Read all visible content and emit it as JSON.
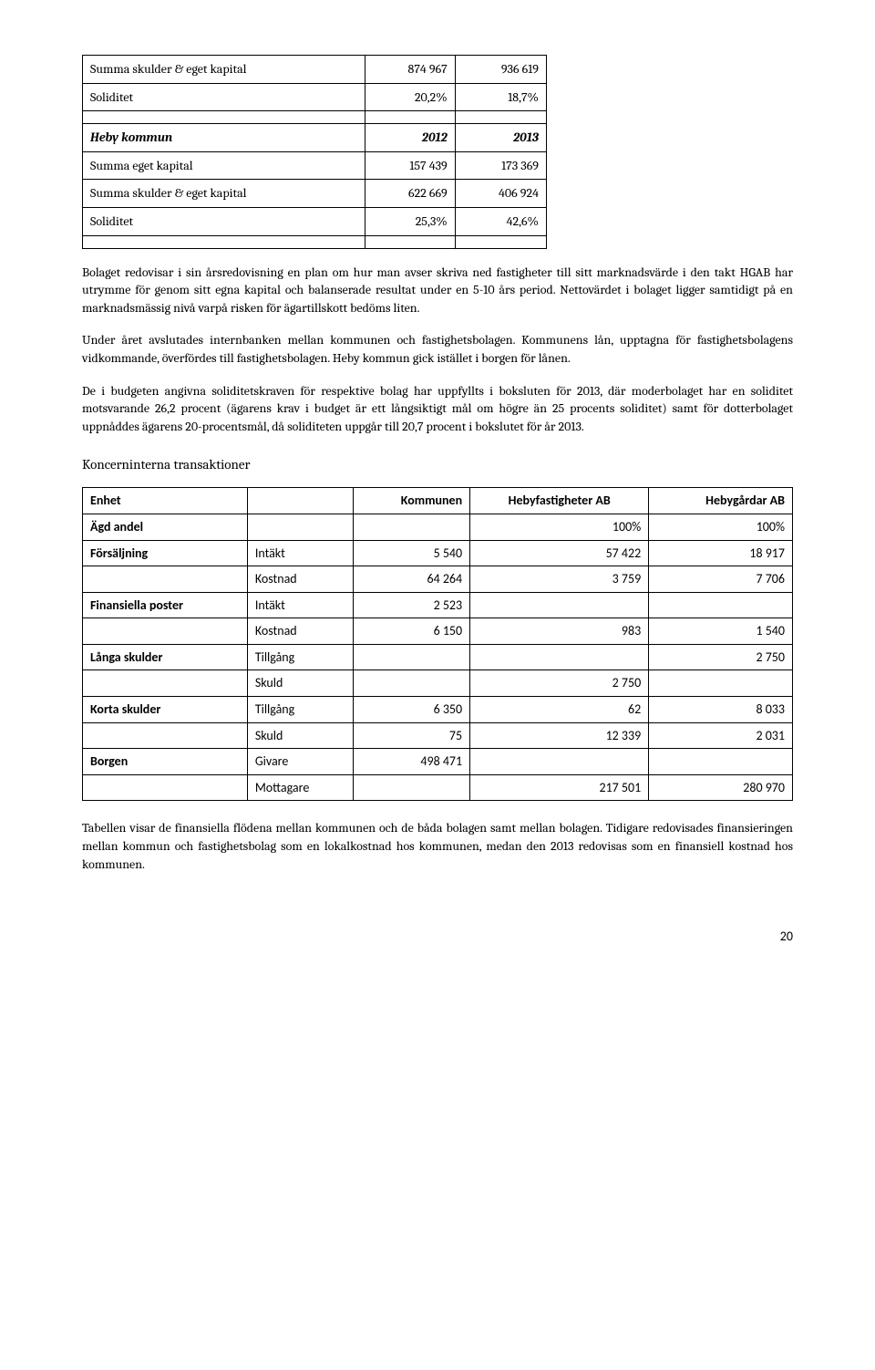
{
  "table1": {
    "rows": [
      {
        "label": "Summa skulder & eget kapital",
        "v1": "874 967",
        "v2": "936 619",
        "bold": false
      },
      {
        "label": "Soliditet",
        "v1": "20,2%",
        "v2": "18,7%",
        "bold": false
      }
    ],
    "header2": {
      "label": "Heby kommun",
      "v1": "2012",
      "v2": "2013"
    },
    "rows2": [
      {
        "label": "Summa eget kapital",
        "v1": "157 439",
        "v2": "173 369"
      },
      {
        "label": "Summa skulder & eget kapital",
        "v1": "622 669",
        "v2": "406 924"
      },
      {
        "label": "Soliditet",
        "v1": "25,3%",
        "v2": "42,6%"
      }
    ]
  },
  "para1": "Bolaget redovisar i sin årsredovisning en plan om hur man avser skriva ned fastigheter till sitt marknadsvärde i den takt HGAB har utrymme för genom sitt egna kapital och balanserade resultat under en 5-10 års period. Nettovärdet i bolaget ligger samtidigt på en marknadsmässig nivå varpå risken för ägartillskott bedöms liten.",
  "para2": "Under året avslutades internbanken mellan kommunen och fastighetsbolagen. Kommunens lån, upptagna för fastighetsbolagens vidkommande, överfördes till fastighetsbolagen. Heby kommun gick istället i borgen för lånen.",
  "para3": "De i budgeten angivna soliditetskraven för respektive bolag har uppfyllts i boksluten för 2013, där moderbolaget har en soliditet motsvarande 26,2 procent (ägarens krav i budget är ett långsiktigt mål om högre än 25 procents soliditet) samt för dotterbolaget uppnåddes ägarens 20-procentsmål, då soliditeten uppgår till 20,7 procent i bokslutet för år 2013.",
  "section_heading": "Koncerninterna transaktioner",
  "table2": {
    "headers": [
      "Enhet",
      "",
      "Kommunen",
      "Hebyfastigheter AB",
      "Hebygårdar AB"
    ],
    "rows": [
      {
        "c0": "Ägd andel",
        "c1": "",
        "c2": "",
        "c3": "100%",
        "c4": "100%",
        "rowhead": true
      },
      {
        "c0": "Försäljning",
        "c1": "Intäkt",
        "c2": "5 540",
        "c3": "57 422",
        "c4": "18 917",
        "rowhead": true
      },
      {
        "c0": "",
        "c1": "Kostnad",
        "c2": "64 264",
        "c3": "3 759",
        "c4": "7 706"
      },
      {
        "c0": "Finansiella poster",
        "c1": "Intäkt",
        "c2": "2 523",
        "c3": "",
        "c4": "",
        "rowhead": true
      },
      {
        "c0": "",
        "c1": "Kostnad",
        "c2": "6 150",
        "c3": "983",
        "c4": "1 540"
      },
      {
        "c0": "Långa skulder",
        "c1": "Tillgång",
        "c2": "",
        "c3": "",
        "c4": "2 750",
        "rowhead": true
      },
      {
        "c0": "",
        "c1": "Skuld",
        "c2": "",
        "c3": "2 750",
        "c4": ""
      },
      {
        "c0": "Korta skulder",
        "c1": "Tillgång",
        "c2": "6 350",
        "c3": "62",
        "c4": "8 033",
        "rowhead": true
      },
      {
        "c0": "",
        "c1": "Skuld",
        "c2": "75",
        "c3": "12 339",
        "c4": "2 031"
      },
      {
        "c0": "Borgen",
        "c1": "Givare",
        "c2": "498 471",
        "c3": "",
        "c4": "",
        "rowhead": true
      },
      {
        "c0": "",
        "c1": "Mottagare",
        "c2": "",
        "c3": "217 501",
        "c4": "280 970"
      }
    ]
  },
  "para4": "Tabellen visar de finansiella flödena mellan kommunen och de båda bolagen samt mellan bolagen. Tidigare redovisades finansieringen mellan kommun och fastighetsbolag som en lokalkostnad hos kommunen, medan den 2013 redovisas som en finansiell kostnad hos kommunen.",
  "page_num": "20"
}
